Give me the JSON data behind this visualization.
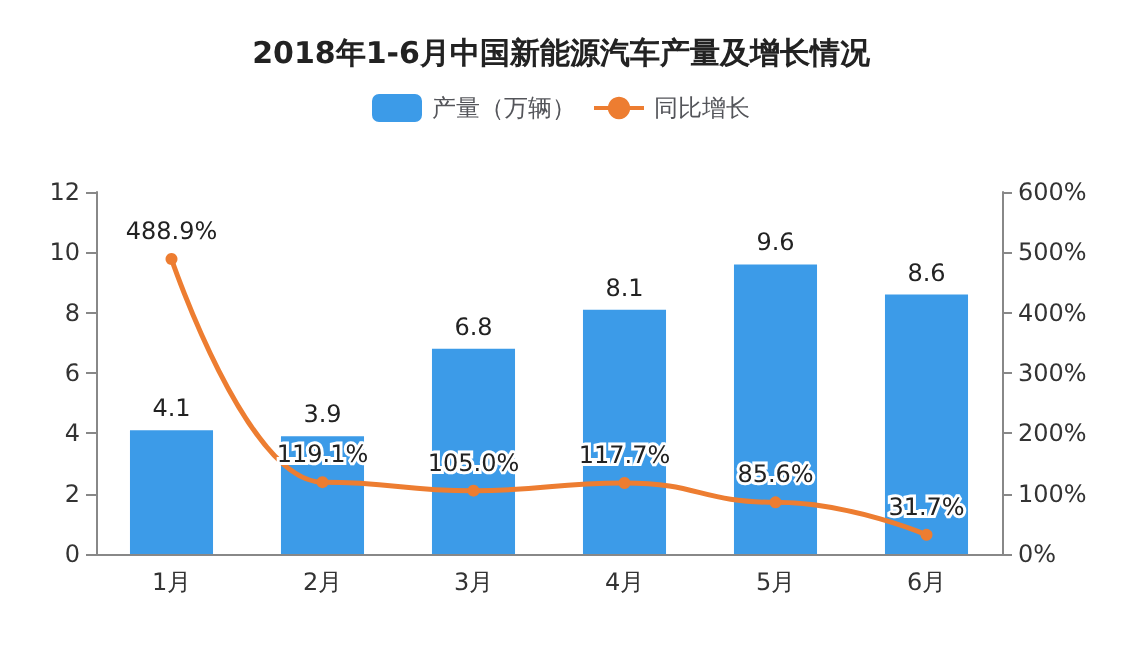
{
  "chart_data": {
    "type": "bar",
    "title": "2018年1-6月中国新能源汽车产量及增长情况",
    "categories": [
      "1月",
      "2月",
      "3月",
      "4月",
      "5月",
      "6月"
    ],
    "series": [
      {
        "name": "产量（万辆）",
        "color": "#3c9be8",
        "values": [
          4.1,
          3.9,
          6.8,
          8.1,
          9.6,
          8.6
        ],
        "value_labels": [
          "4.1",
          "3.9",
          "6.8",
          "8.1",
          "9.6",
          "8.6"
        ]
      },
      {
        "name": "同比增长",
        "type": "line",
        "axis": "y2",
        "color": "#ed7d31",
        "values": [
          488.9,
          119.1,
          105.0,
          117.7,
          85.6,
          31.7
        ],
        "value_labels": [
          "488.9%",
          "119.1%",
          "105.0%",
          "117.7%",
          "85.6%",
          "31.7%"
        ]
      }
    ],
    "ylim": [
      0,
      12
    ],
    "yticks": [
      0,
      2,
      4,
      6,
      8,
      10,
      12
    ],
    "y2lim": [
      0,
      600
    ],
    "y2ticks": [
      {
        "value": 0,
        "label": "0%"
      },
      {
        "value": 100,
        "label": "100%"
      },
      {
        "value": 200,
        "label": "200%"
      },
      {
        "value": 300,
        "label": "300%"
      },
      {
        "value": 400,
        "label": "400%"
      },
      {
        "value": 500,
        "label": "500%"
      },
      {
        "value": 600,
        "label": "600%"
      }
    ],
    "legend": "top",
    "grid": false,
    "marker": "circle",
    "line_style": "solid"
  }
}
